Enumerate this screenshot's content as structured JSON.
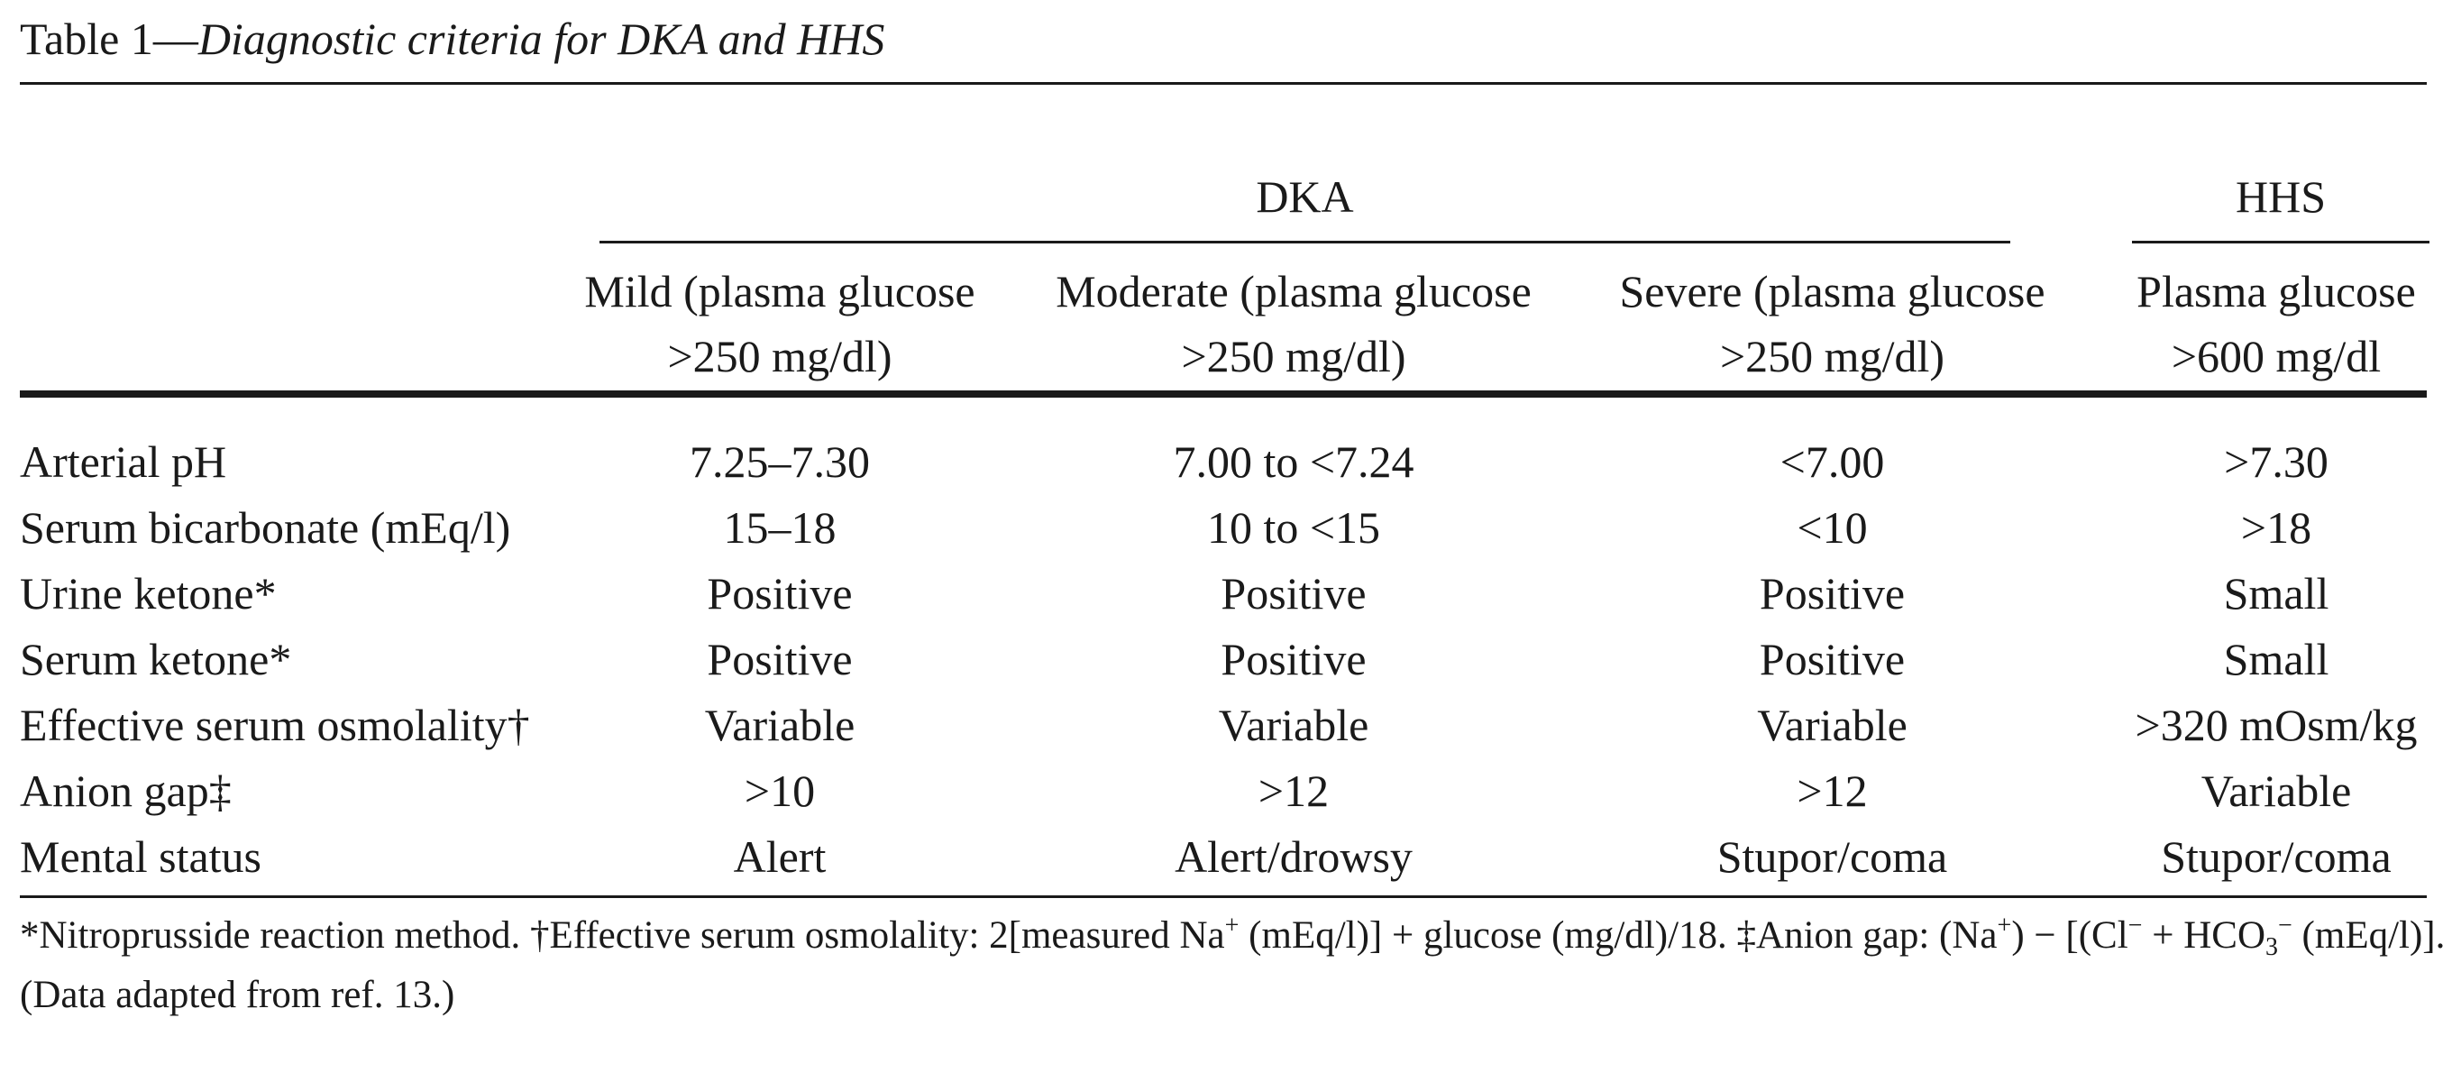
{
  "caption": {
    "prefix": "Table 1—",
    "title": "Diagnostic criteria for DKA and HHS"
  },
  "groups": {
    "dka": "DKA",
    "hhs": "HHS"
  },
  "columns": [
    {
      "line1": "Mild (plasma glucose",
      "line2": ">250 mg/dl)"
    },
    {
      "line1": "Moderate (plasma glucose",
      "line2": ">250 mg/dl)"
    },
    {
      "line1": "Severe (plasma glucose",
      "line2": ">250 mg/dl)"
    },
    {
      "line1": "Plasma glucose",
      "line2": ">600 mg/dl"
    }
  ],
  "rows": [
    {
      "label": "Arterial pH",
      "cells": [
        "7.25–7.30",
        "7.00 to <7.24",
        "<7.00",
        ">7.30"
      ]
    },
    {
      "label": "Serum bicarbonate (mEq/l)",
      "cells": [
        "15–18",
        "10 to <15",
        "<10",
        ">18"
      ]
    },
    {
      "label": "Urine ketone*",
      "cells": [
        "Positive",
        "Positive",
        "Positive",
        "Small"
      ]
    },
    {
      "label": "Serum ketone*",
      "cells": [
        "Positive",
        "Positive",
        "Positive",
        "Small"
      ]
    },
    {
      "label": "Effective serum osmolality†",
      "cells": [
        "Variable",
        "Variable",
        "Variable",
        ">320 mOsm/kg"
      ]
    },
    {
      "label": "Anion gap‡",
      "cells": [
        ">10",
        ">12",
        ">12",
        "Variable"
      ]
    },
    {
      "label": "Mental status",
      "cells": [
        "Alert",
        "Alert/drowsy",
        "Stupor/coma",
        "Stupor/coma"
      ]
    }
  ],
  "footnote": {
    "part1": "*Nitroprusside reaction method. †Effective serum osmolality: 2[measured Na",
    "sup_plus_1": "+",
    "part2": " (mEq/l)] + glucose (mg/dl)/18. ‡Anion gap: (Na",
    "sup_plus_2": "+",
    "part3": ") − [(Cl",
    "sup_minus_1": "−",
    "part4": " + HCO",
    "sub_3": "3",
    "sup_minus_2": "−",
    "part5": " (mEq/l)].",
    "line2": "(Data adapted from ref. 13.)"
  }
}
